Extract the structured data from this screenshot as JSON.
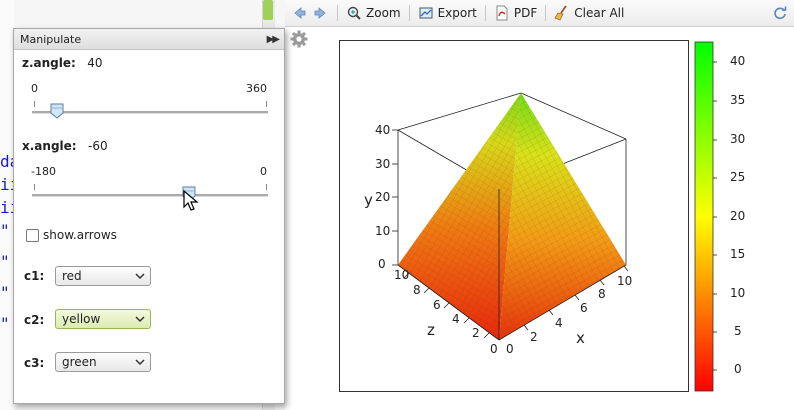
{
  "toolbar": {
    "zoom_label": "Zoom",
    "export_label": "Export",
    "pdf_label": "PDF",
    "clear_label": "Clear All"
  },
  "editor": {
    "lines": [
      "da",
      "ii",
      "ii",
      "\"",
      "\"",
      "\"",
      "\""
    ]
  },
  "manipulate": {
    "title": "Manipulate",
    "z_angle": {
      "label": "z.angle:",
      "value": "40",
      "min": "0",
      "max": "360",
      "fraction": 0.111
    },
    "x_angle": {
      "label": "x.angle:",
      "value": "-60",
      "min": "-180",
      "max": "0",
      "fraction": 0.667
    },
    "show_arrows": {
      "label": "show.arrows",
      "checked": false
    },
    "c1": {
      "label": "c1:",
      "value": "red"
    },
    "c2": {
      "label": "c2:",
      "value": "yellow"
    },
    "c3": {
      "label": "c3:",
      "value": "green"
    }
  },
  "plot": {
    "y_label": "y",
    "x_label": "x",
    "z_label": "z",
    "y_ticks": [
      "0",
      "10",
      "20",
      "30",
      "40"
    ],
    "x_ticks": [
      "0",
      "2",
      "4",
      "6",
      "8",
      "10"
    ],
    "z_ticks": [
      "0",
      "2",
      "4",
      "6",
      "8",
      "10"
    ],
    "colorbar_ticks": [
      "0",
      "5",
      "10",
      "15",
      "20",
      "25",
      "30",
      "35",
      "40"
    ],
    "colors": {
      "low": "#ff0000",
      "mid": "#ffff00",
      "high": "#00ff00"
    }
  }
}
